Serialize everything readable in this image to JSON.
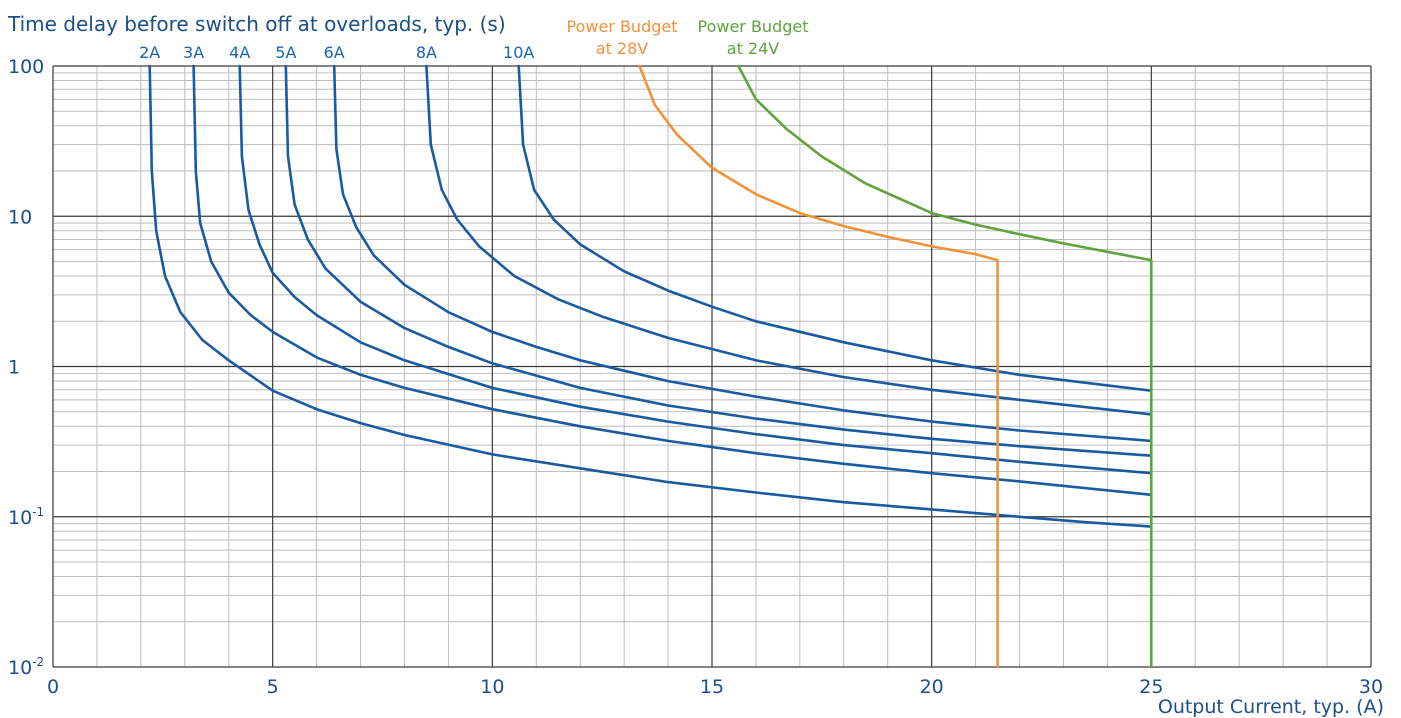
{
  "chart_data": {
    "type": "line",
    "title": "Time delay before switch off at overloads, typ. (s)",
    "xlabel": "Output Current, typ. (A)",
    "ylabel": "Time delay before switch off at overloads, typ. (s)",
    "xlim": [
      0,
      30
    ],
    "ylim": [
      0.01,
      100
    ],
    "yscale": "log",
    "grid": true,
    "x_ticks": [
      "0",
      "5",
      "10",
      "15",
      "20",
      "25",
      "30"
    ],
    "x_tick_values": [
      0,
      5,
      10,
      15,
      20,
      25,
      30
    ],
    "y_ticks": [
      {
        "value": 100,
        "base": "100",
        "exp": ""
      },
      {
        "value": 10,
        "base": "10",
        "exp": ""
      },
      {
        "value": 1,
        "base": "1",
        "exp": ""
      },
      {
        "value": 0.1,
        "base": "10",
        "exp": "-1"
      },
      {
        "value": 0.01,
        "base": "10",
        "exp": "-2"
      }
    ],
    "colors": {
      "blue": "#1a5aa0",
      "orange": "#f0923a",
      "green": "#5ea33e",
      "grid_major": "#3a3a3a",
      "grid_minor": "#bdbdbd",
      "label_blue": "#1a64b4"
    },
    "series": [
      {
        "name": "2A",
        "color": "#1a5aa0",
        "label_x": 2.2,
        "points": [
          [
            2.2,
            100
          ],
          [
            2.25,
            20
          ],
          [
            2.35,
            8
          ],
          [
            2.55,
            4
          ],
          [
            2.9,
            2.3
          ],
          [
            3.4,
            1.5
          ],
          [
            4.0,
            1.1
          ],
          [
            5.0,
            0.69
          ],
          [
            6.0,
            0.52
          ],
          [
            7.0,
            0.42
          ],
          [
            8.0,
            0.35
          ],
          [
            10.0,
            0.26
          ],
          [
            12.0,
            0.21
          ],
          [
            14.0,
            0.17
          ],
          [
            16.0,
            0.145
          ],
          [
            18.0,
            0.125
          ],
          [
            20.0,
            0.112
          ],
          [
            22.0,
            0.1
          ],
          [
            23.5,
            0.092
          ],
          [
            25.0,
            0.086
          ]
        ]
      },
      {
        "name": "3A",
        "color": "#1a5aa0",
        "label_x": 3.2,
        "points": [
          [
            3.2,
            100
          ],
          [
            3.25,
            20
          ],
          [
            3.35,
            9
          ],
          [
            3.6,
            5
          ],
          [
            4.0,
            3.1
          ],
          [
            4.5,
            2.2
          ],
          [
            5.0,
            1.7
          ],
          [
            6.0,
            1.15
          ],
          [
            7.0,
            0.88
          ],
          [
            8.0,
            0.72
          ],
          [
            10.0,
            0.52
          ],
          [
            12.0,
            0.4
          ],
          [
            14.0,
            0.32
          ],
          [
            16.0,
            0.265
          ],
          [
            18.0,
            0.225
          ],
          [
            20.0,
            0.195
          ],
          [
            22.0,
            0.172
          ],
          [
            25.0,
            0.14
          ]
        ]
      },
      {
        "name": "4A",
        "color": "#1a5aa0",
        "label_x": 4.25,
        "points": [
          [
            4.25,
            100
          ],
          [
            4.3,
            25
          ],
          [
            4.45,
            11
          ],
          [
            4.7,
            6.5
          ],
          [
            5.0,
            4.2
          ],
          [
            5.5,
            2.9
          ],
          [
            6.0,
            2.2
          ],
          [
            7.0,
            1.45
          ],
          [
            8.0,
            1.1
          ],
          [
            10.0,
            0.72
          ],
          [
            12.0,
            0.54
          ],
          [
            14.0,
            0.43
          ],
          [
            16.0,
            0.355
          ],
          [
            18.0,
            0.3
          ],
          [
            20.0,
            0.265
          ],
          [
            22.0,
            0.232
          ],
          [
            25.0,
            0.195
          ]
        ]
      },
      {
        "name": "5A",
        "color": "#1a5aa0",
        "label_x": 5.3,
        "points": [
          [
            5.3,
            100
          ],
          [
            5.35,
            25
          ],
          [
            5.5,
            12
          ],
          [
            5.8,
            7
          ],
          [
            6.2,
            4.5
          ],
          [
            7.0,
            2.7
          ],
          [
            8.0,
            1.8
          ],
          [
            9.0,
            1.35
          ],
          [
            10.0,
            1.05
          ],
          [
            12.0,
            0.72
          ],
          [
            14.0,
            0.55
          ],
          [
            16.0,
            0.45
          ],
          [
            18.0,
            0.38
          ],
          [
            20.0,
            0.33
          ],
          [
            22.0,
            0.295
          ],
          [
            25.0,
            0.255
          ]
        ]
      },
      {
        "name": "6A",
        "color": "#1a5aa0",
        "label_x": 6.4,
        "points": [
          [
            6.4,
            100
          ],
          [
            6.45,
            28
          ],
          [
            6.6,
            14
          ],
          [
            6.9,
            8.5
          ],
          [
            7.3,
            5.5
          ],
          [
            8.0,
            3.5
          ],
          [
            9.0,
            2.3
          ],
          [
            10.0,
            1.7
          ],
          [
            11.0,
            1.35
          ],
          [
            12.0,
            1.1
          ],
          [
            14.0,
            0.8
          ],
          [
            16.0,
            0.63
          ],
          [
            18.0,
            0.51
          ],
          [
            20.0,
            0.43
          ],
          [
            22.0,
            0.375
          ],
          [
            25.0,
            0.32
          ]
        ]
      },
      {
        "name": "8A",
        "color": "#1a5aa0",
        "label_x": 8.5,
        "points": [
          [
            8.5,
            100
          ],
          [
            8.6,
            30
          ],
          [
            8.85,
            15
          ],
          [
            9.2,
            9.5
          ],
          [
            9.7,
            6.3
          ],
          [
            10.5,
            4.0
          ],
          [
            11.5,
            2.8
          ],
          [
            12.5,
            2.15
          ],
          [
            14.0,
            1.55
          ],
          [
            16.0,
            1.1
          ],
          [
            18.0,
            0.85
          ],
          [
            20.0,
            0.7
          ],
          [
            22.0,
            0.6
          ],
          [
            25.0,
            0.48
          ]
        ]
      },
      {
        "name": "10A",
        "color": "#1a5aa0",
        "label_x": 10.6,
        "points": [
          [
            10.6,
            100
          ],
          [
            10.7,
            30
          ],
          [
            10.95,
            15
          ],
          [
            11.4,
            9.5
          ],
          [
            12.0,
            6.5
          ],
          [
            13.0,
            4.3
          ],
          [
            14.0,
            3.2
          ],
          [
            15.0,
            2.5
          ],
          [
            16.0,
            2.0
          ],
          [
            18.0,
            1.45
          ],
          [
            20.0,
            1.1
          ],
          [
            22.0,
            0.88
          ],
          [
            25.0,
            0.69
          ]
        ]
      },
      {
        "name": "Power Budget at 28V",
        "color": "#f0923a",
        "label_x": 13.2,
        "points": [
          [
            13.35,
            100
          ],
          [
            13.7,
            55
          ],
          [
            14.2,
            35
          ],
          [
            15.0,
            21
          ],
          [
            16.0,
            14
          ],
          [
            17.0,
            10.5
          ],
          [
            18.0,
            8.6
          ],
          [
            19.0,
            7.3
          ],
          [
            20.0,
            6.3
          ],
          [
            21.0,
            5.6
          ],
          [
            21.5,
            5.1
          ],
          [
            21.5,
            0.01
          ]
        ]
      },
      {
        "name": "Power Budget at 24V",
        "color": "#5ea33e",
        "label_x": 16.0,
        "points": [
          [
            15.6,
            100
          ],
          [
            16.0,
            60
          ],
          [
            16.7,
            38
          ],
          [
            17.5,
            25
          ],
          [
            18.5,
            16.5
          ],
          [
            20.0,
            10.5
          ],
          [
            21.0,
            8.8
          ],
          [
            22.0,
            7.6
          ],
          [
            23.0,
            6.6
          ],
          [
            24.0,
            5.8
          ],
          [
            25.0,
            5.1
          ],
          [
            25.0,
            0.01
          ]
        ]
      }
    ],
    "labels": {
      "orange_line1": "Power Budget",
      "orange_line2": "at 28V",
      "green_line1": "Power Budget",
      "green_line2": "at 24V"
    }
  }
}
